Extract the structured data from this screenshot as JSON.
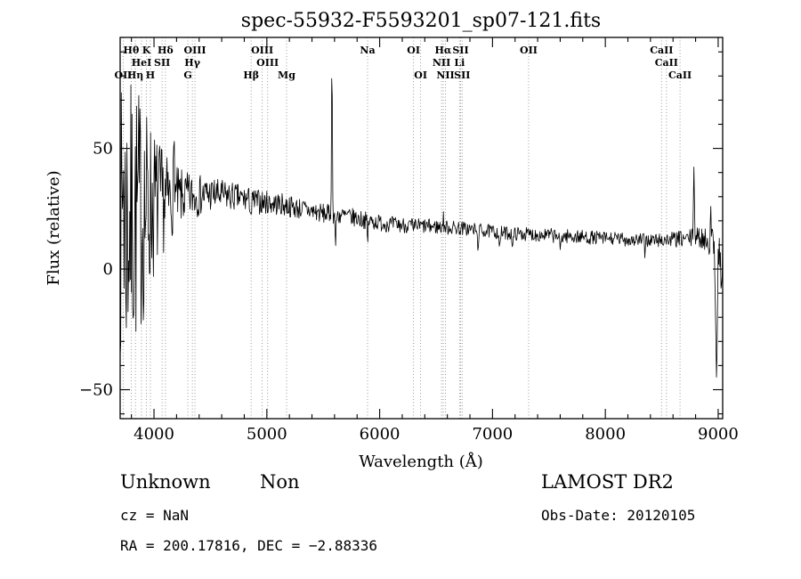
{
  "chart_data": {
    "type": "line",
    "title": "spec-55932-F5593201_sp07-121.fits",
    "xlabel": "Wavelength (Å)",
    "ylabel": "Flux (relative)",
    "xlim": [
      3700,
      9040
    ],
    "ylim": [
      -62,
      96
    ],
    "xticks": [
      4000,
      5000,
      6000,
      7000,
      8000,
      9000
    ],
    "xtick_labels": [
      "4000",
      "5000",
      "6000",
      "7000",
      "8000",
      "9000"
    ],
    "yticks": [
      -50,
      0,
      50
    ],
    "ytick_labels": [
      "−50",
      "0",
      "50"
    ],
    "x_minor_step": 200,
    "y_minor_step": 10,
    "grid": false,
    "line_color": "#000000",
    "marker_line_color": "#909090",
    "spectral_lines": [
      {
        "wl": 3727,
        "label": "OII",
        "row": 3
      },
      {
        "wl": 3798,
        "label": "Hθ",
        "row": 1
      },
      {
        "wl": 3835,
        "label": "Hη",
        "row": 3
      },
      {
        "wl": 3889,
        "label": "HeI",
        "row": 2
      },
      {
        "wl": 3933,
        "label": "K",
        "row": 1
      },
      {
        "wl": 3968,
        "label": "H",
        "row": 3
      },
      {
        "wl": 4072,
        "label": "SII",
        "row": 2
      },
      {
        "wl": 4101,
        "label": "Hδ",
        "row": 1
      },
      {
        "wl": 4300,
        "label": "G",
        "row": 3
      },
      {
        "wl": 4340,
        "label": "Hγ",
        "row": 2
      },
      {
        "wl": 4363,
        "label": "OIII",
        "row": 1
      },
      {
        "wl": 4861,
        "label": "Hβ",
        "row": 3
      },
      {
        "wl": 4959,
        "label": "OIII",
        "row": 1
      },
      {
        "wl": 5007,
        "label": "OIII",
        "row": 2
      },
      {
        "wl": 5175,
        "label": "Mg",
        "row": 3
      },
      {
        "wl": 5893,
        "label": "Na",
        "row": 1
      },
      {
        "wl": 6300,
        "label": "OI",
        "row": 1
      },
      {
        "wl": 6363,
        "label": "OI",
        "row": 3
      },
      {
        "wl": 6548,
        "label": "NII",
        "row": 2
      },
      {
        "wl": 6563,
        "label": "Hα",
        "row": 1
      },
      {
        "wl": 6583,
        "label": "NII",
        "row": 3
      },
      {
        "wl": 6708,
        "label": "Li",
        "row": 2
      },
      {
        "wl": 6717,
        "label": "SII",
        "row": 1
      },
      {
        "wl": 6731,
        "label": "SII",
        "row": 3
      },
      {
        "wl": 7320,
        "label": "OII",
        "row": 1
      },
      {
        "wl": 8498,
        "label": "CaII",
        "row": 1
      },
      {
        "wl": 8542,
        "label": "CaII",
        "row": 2
      },
      {
        "wl": 8662,
        "label": "CaII",
        "row": 3
      }
    ],
    "spectrum": {
      "wl_min": 3700,
      "wl_max": 9040,
      "step": 5,
      "seed": 7,
      "continuum": [
        [
          3700,
          18
        ],
        [
          3800,
          20
        ],
        [
          3900,
          24
        ],
        [
          4000,
          27
        ],
        [
          4150,
          29
        ],
        [
          4300,
          30
        ],
        [
          4500,
          31
        ],
        [
          4700,
          30
        ],
        [
          4900,
          28
        ],
        [
          5100,
          27
        ],
        [
          5300,
          25
        ],
        [
          5500,
          23
        ],
        [
          5700,
          22
        ],
        [
          5900,
          20
        ],
        [
          6100,
          18.5
        ],
        [
          6300,
          18
        ],
        [
          6500,
          17.5
        ],
        [
          6700,
          17
        ],
        [
          6900,
          16
        ],
        [
          7100,
          15
        ],
        [
          7300,
          14.5
        ],
        [
          7500,
          14
        ],
        [
          7700,
          13.5
        ],
        [
          7900,
          13
        ],
        [
          8100,
          12.5
        ],
        [
          8300,
          12
        ],
        [
          8500,
          12
        ],
        [
          8700,
          12.5
        ],
        [
          8850,
          13
        ],
        [
          8950,
          11
        ],
        [
          9040,
          6
        ]
      ],
      "noise_envelope": [
        [
          3700,
          55
        ],
        [
          3740,
          65
        ],
        [
          3780,
          60
        ],
        [
          3850,
          55
        ],
        [
          3900,
          48
        ],
        [
          3950,
          40
        ],
        [
          4000,
          32
        ],
        [
          4060,
          24
        ],
        [
          4120,
          18
        ],
        [
          4200,
          13
        ],
        [
          4300,
          10
        ],
        [
          4450,
          8
        ],
        [
          4600,
          6.5
        ],
        [
          4800,
          5.5
        ],
        [
          5000,
          5
        ],
        [
          5300,
          4.5
        ],
        [
          5600,
          4
        ],
        [
          6000,
          3.5
        ],
        [
          6400,
          3.2
        ],
        [
          6800,
          3
        ],
        [
          7200,
          2.8
        ],
        [
          7600,
          3
        ],
        [
          8000,
          2.8
        ],
        [
          8400,
          3
        ],
        [
          8700,
          3.5
        ],
        [
          8900,
          5
        ],
        [
          9000,
          9
        ],
        [
          9040,
          12
        ]
      ],
      "spikes": [
        [
          3728,
          30,
          4
        ],
        [
          4180,
          20,
          5
        ],
        [
          4861,
          -6,
          5
        ],
        [
          5577,
          62,
          4
        ],
        [
          5610,
          -13,
          4
        ],
        [
          5893,
          -9,
          4
        ],
        [
          6300,
          -5,
          3
        ],
        [
          6563,
          4,
          4
        ],
        [
          6870,
          -6,
          6
        ],
        [
          7065,
          -7,
          5
        ],
        [
          7180,
          -5,
          6
        ],
        [
          7600,
          -6,
          6
        ],
        [
          8350,
          -5,
          4
        ],
        [
          8785,
          33,
          4
        ],
        [
          8935,
          10,
          4
        ],
        [
          8985,
          -50,
          7
        ],
        [
          9030,
          -18,
          5
        ]
      ]
    }
  },
  "annotations": {
    "class_label": "Unknown",
    "subclass_label": "Non",
    "survey": "LAMOST DR2",
    "cz": "cz = NaN",
    "obs_date": "Obs-Date: 20120105",
    "coordinates": "RA = 200.17816, DEC = −2.88336"
  }
}
